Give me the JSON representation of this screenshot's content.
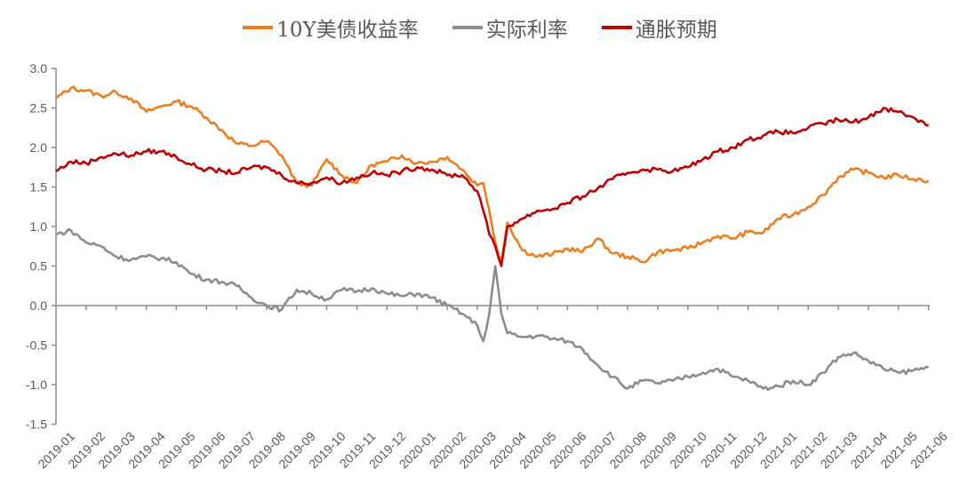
{
  "legend": {
    "items": [
      {
        "label": "10Y美债收益率",
        "color": "#ED7D1E"
      },
      {
        "label": "实际利率",
        "color": "#8C8C8C"
      },
      {
        "label": "通胀预期",
        "color": "#C00000"
      }
    ]
  },
  "chart_data": {
    "type": "line",
    "title": "",
    "xlabel": "",
    "ylabel": "",
    "ylim": [
      -1.5,
      3.0
    ],
    "yticks": [
      "3.0",
      "2.5",
      "2.0",
      "1.5",
      "1.0",
      "0.5",
      "0.0",
      "-0.5",
      "-1.0",
      "-1.5"
    ],
    "categories": [
      "2019-01",
      "2019-02",
      "2019-03",
      "2019-04",
      "2019-05",
      "2019-06",
      "2019-07",
      "2019-08",
      "2019-09",
      "2019-10",
      "2019-11",
      "2019-12",
      "2020-01",
      "2020-02",
      "2020-03",
      "2020-04",
      "2020-05",
      "2020-06",
      "2020-07",
      "2020-08",
      "2020-09",
      "2020-10",
      "2020-11",
      "2020-12",
      "2021-01",
      "2021-02",
      "2021-03",
      "2021-04",
      "2021-05",
      "2021-06"
    ],
    "grid": false,
    "legend_position": "top",
    "x": [
      0,
      0.5,
      1,
      1.5,
      2,
      2.5,
      3,
      3.5,
      4,
      4.5,
      5,
      5.5,
      6,
      6.5,
      7,
      7.5,
      8,
      8.5,
      9,
      9.5,
      10,
      10.5,
      11,
      11.5,
      12,
      12.5,
      13,
      13.5,
      14,
      14.2,
      14.4,
      14.6,
      14.8,
      15,
      15.5,
      16,
      16.5,
      17,
      17.5,
      18,
      18.5,
      19,
      19.5,
      20,
      20.5,
      21,
      21.5,
      22,
      22.5,
      23,
      23.5,
      24,
      24.5,
      25,
      25.5,
      26,
      26.5,
      27,
      27.5,
      28,
      28.5,
      29
    ],
    "series": [
      {
        "name": "10Y美债收益率",
        "color": "#ED7D1E",
        "values": [
          2.62,
          2.75,
          2.72,
          2.65,
          2.7,
          2.62,
          2.45,
          2.52,
          2.58,
          2.52,
          2.38,
          2.22,
          2.05,
          2.02,
          2.08,
          1.9,
          1.55,
          1.52,
          1.85,
          1.65,
          1.55,
          1.78,
          1.82,
          1.9,
          1.8,
          1.82,
          1.88,
          1.72,
          1.52,
          1.55,
          1.2,
          0.8,
          0.55,
          1.05,
          0.7,
          0.62,
          0.65,
          0.72,
          0.68,
          0.85,
          0.66,
          0.62,
          0.55,
          0.68,
          0.7,
          0.72,
          0.8,
          0.88,
          0.85,
          0.93,
          0.92,
          1.1,
          1.15,
          1.25,
          1.4,
          1.62,
          1.72,
          1.68,
          1.62,
          1.65,
          1.6,
          1.58
        ]
      },
      {
        "name": "实际利率",
        "color": "#8C8C8C",
        "values": [
          0.9,
          0.95,
          0.8,
          0.75,
          0.62,
          0.58,
          0.62,
          0.6,
          0.55,
          0.4,
          0.33,
          0.3,
          0.25,
          0.1,
          0.0,
          -0.05,
          0.2,
          0.15,
          0.08,
          0.2,
          0.18,
          0.22,
          0.15,
          0.12,
          0.15,
          0.1,
          0.0,
          -0.1,
          -0.25,
          -0.45,
          -0.1,
          0.5,
          -0.1,
          -0.35,
          -0.4,
          -0.38,
          -0.42,
          -0.45,
          -0.55,
          -0.75,
          -0.9,
          -1.05,
          -0.95,
          -0.98,
          -0.95,
          -0.9,
          -0.85,
          -0.8,
          -0.9,
          -0.95,
          -1.05,
          -1.02,
          -0.95,
          -1.0,
          -0.85,
          -0.65,
          -0.6,
          -0.7,
          -0.8,
          -0.85,
          -0.82,
          -0.78
        ]
      },
      {
        "name": "通胀预期",
        "color": "#C00000",
        "values": [
          1.7,
          1.82,
          1.8,
          1.88,
          1.92,
          1.9,
          1.95,
          1.95,
          1.88,
          1.78,
          1.72,
          1.7,
          1.68,
          1.75,
          1.75,
          1.65,
          1.55,
          1.55,
          1.62,
          1.55,
          1.62,
          1.68,
          1.65,
          1.7,
          1.75,
          1.72,
          1.65,
          1.65,
          1.45,
          1.2,
          0.9,
          0.75,
          0.5,
          1.0,
          1.1,
          1.2,
          1.22,
          1.3,
          1.38,
          1.48,
          1.6,
          1.68,
          1.72,
          1.72,
          1.7,
          1.75,
          1.85,
          1.95,
          2.0,
          2.1,
          2.15,
          2.2,
          2.18,
          2.25,
          2.3,
          2.35,
          2.32,
          2.38,
          2.5,
          2.45,
          2.38,
          2.28
        ]
      }
    ]
  }
}
